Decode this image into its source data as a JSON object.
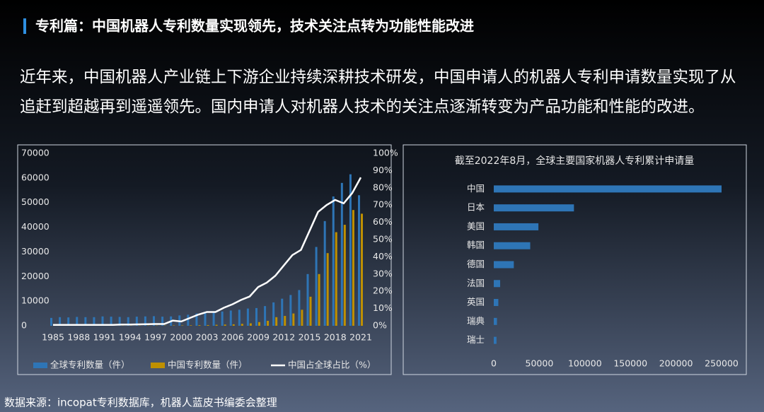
{
  "header": {
    "title": "专利篇：中国机器人专利数量实现领先，技术关注点转为功能性能改进",
    "paragraph": [
      "近年来，中国机器人产业链上下游企业持续深耕技术研发，中国申请人的机器人专利申请数量实现了从",
      "追赶到超越再到遥遥领先。国内申请人对机器人技术的关注点逐渐转变为产品功能和性能的改进。"
    ]
  },
  "source": "数据来源：incopat专利数据库，机器人蓝皮书编委会整理",
  "chart_data": [
    {
      "type": "bar",
      "x": [
        1985,
        1986,
        1987,
        1988,
        1989,
        1990,
        1991,
        1992,
        1993,
        1994,
        1995,
        1996,
        1997,
        1998,
        1999,
        2000,
        2001,
        2002,
        2003,
        2004,
        2005,
        2006,
        2007,
        2008,
        2009,
        2010,
        2011,
        2012,
        2013,
        2014,
        2015,
        2016,
        2017,
        2018,
        2019,
        2020,
        2021
      ],
      "xticks": [
        1985,
        1988,
        1991,
        1994,
        1997,
        2000,
        2003,
        2006,
        2009,
        2012,
        2015,
        2018,
        2021
      ],
      "xlim": [
        1985,
        2021
      ],
      "ylim": [
        0,
        70000
      ],
      "yticks": [
        0,
        10000,
        20000,
        30000,
        40000,
        50000,
        60000,
        70000
      ],
      "y2lim": [
        0,
        100
      ],
      "y2ticks": [
        {
          "value": 0,
          "label": "0%"
        },
        {
          "value": 10,
          "label": "10%"
        },
        {
          "value": 20,
          "label": "20%"
        },
        {
          "value": 30,
          "label": "30%"
        },
        {
          "value": 40,
          "label": "40%"
        },
        {
          "value": 50,
          "label": "50%"
        },
        {
          "value": 60,
          "label": "60%"
        },
        {
          "value": 70,
          "label": "70%"
        },
        {
          "value": 80,
          "label": "80%"
        },
        {
          "value": 90,
          "label": "90%"
        },
        {
          "value": 100,
          "label": "100%"
        }
      ],
      "series": [
        {
          "name": "全球专利数量（件）",
          "color": "#2e75b6",
          "values": [
            3200,
            3500,
            3400,
            3600,
            3500,
            3500,
            3800,
            3700,
            3600,
            3500,
            3700,
            3800,
            3900,
            3700,
            3800,
            4200,
            4500,
            5000,
            5200,
            5500,
            5800,
            6200,
            6500,
            7000,
            7200,
            8000,
            9500,
            11000,
            12500,
            14500,
            21000,
            32000,
            42500,
            52500,
            58000,
            61500,
            53000
          ]
        },
        {
          "name": "中国专利数量（件）",
          "color": "#bf9000",
          "values": [
            50,
            50,
            50,
            50,
            50,
            50,
            50,
            50,
            60,
            60,
            70,
            80,
            90,
            100,
            150,
            150,
            200,
            250,
            300,
            400,
            500,
            600,
            800,
            1000,
            1500,
            2000,
            3500,
            4000,
            5000,
            6500,
            11800,
            21000,
            29500,
            38000,
            41000,
            47000,
            45500
          ]
        },
        {
          "name": "中国占全球占比（%）",
          "color": "#ffffff",
          "type": "line",
          "axis": "y2",
          "values": [
            0.5,
            0.5,
            0.5,
            0.5,
            0.5,
            0.5,
            0.5,
            0.5,
            0.7,
            0.7,
            0.8,
            0.9,
            1,
            1,
            3,
            2.5,
            4.5,
            6.5,
            8,
            8,
            10.5,
            12.5,
            15,
            17,
            22.5,
            25,
            29,
            35,
            41,
            44,
            55,
            66,
            70,
            73,
            71,
            77,
            86
          ]
        }
      ]
    },
    {
      "type": "barh",
      "title": "截至2022年8月，全球主要国家机器人专利累计申请量",
      "categories": [
        "中国",
        "日本",
        "美国",
        "韩国",
        "德国",
        "法国",
        "英国",
        "瑞典",
        "瑞士"
      ],
      "values": [
        250000,
        88000,
        49000,
        40000,
        22000,
        7000,
        5000,
        3500,
        3000
      ],
      "color": "#2e75b6",
      "xlim": [
        0,
        250000
      ],
      "xticks": [
        0,
        50000,
        100000,
        150000,
        200000,
        250000
      ]
    }
  ]
}
